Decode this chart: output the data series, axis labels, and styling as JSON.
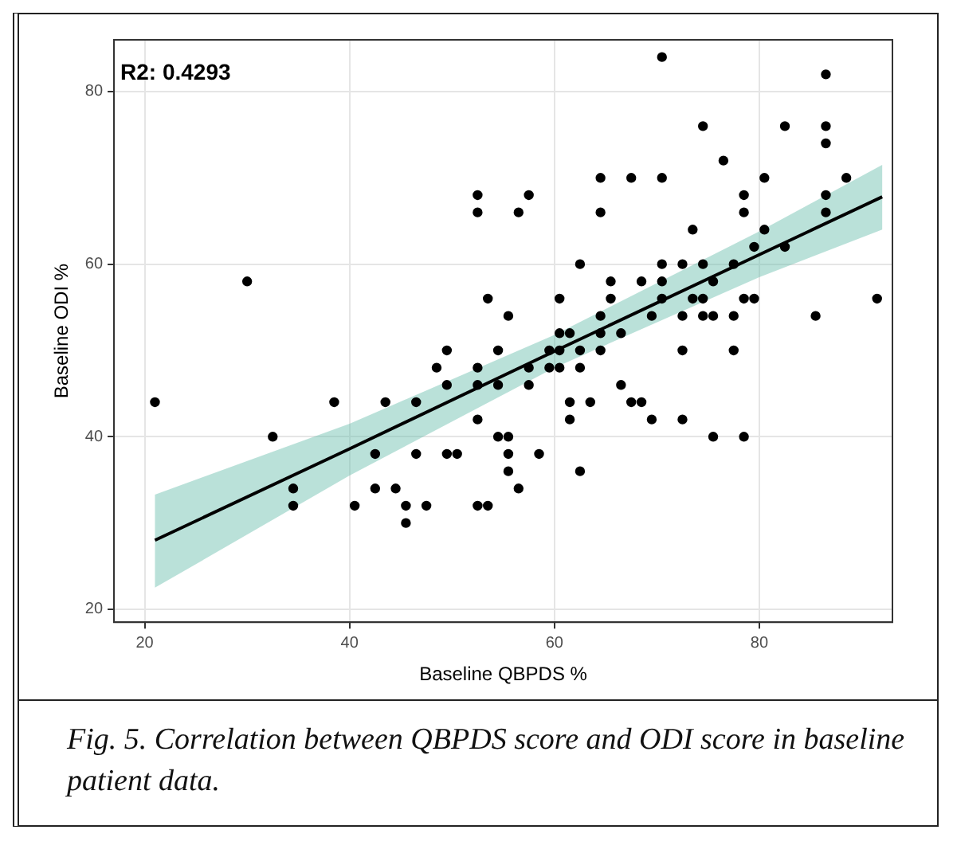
{
  "chart_data": {
    "type": "scatter",
    "xlabel": "Baseline QBPDS %",
    "ylabel": "Baseline ODI %",
    "xlim": [
      17,
      93
    ],
    "ylim": [
      18.5,
      86
    ],
    "xticks": [
      20,
      40,
      60,
      80
    ],
    "yticks": [
      20,
      40,
      60,
      80
    ],
    "grid": true,
    "legend": false,
    "marker": "circle",
    "annotations": [
      "R2: 0.4293",
      "Fig. 5. Correlation between QBPDS score and ODI score in baseline patient data."
    ],
    "series": [
      {
        "type": "scatter",
        "color": "#000000",
        "x": [
          30,
          52.5,
          52.5,
          53.5,
          70.5,
          86.5,
          74.5,
          82.5,
          86.5,
          86.5,
          76.5,
          64.5,
          67.5,
          70.5,
          80.5,
          88.5,
          57.5,
          78.5,
          86.5,
          56.5,
          64.5,
          78.5,
          86.5,
          73.5,
          80.5,
          79.5,
          82.5,
          62.5,
          70.5,
          72.5,
          74.5,
          77.5,
          65.5,
          68.5,
          70.5,
          75.5,
          60.5,
          65.5,
          70.5,
          73.5,
          74.5,
          78.5,
          79.5,
          91.5,
          55.5,
          64.5,
          69.5,
          72.5,
          74.5,
          75.5,
          77.5,
          85.5,
          60.5,
          61.5,
          64.5,
          66.5,
          54.5,
          59.5,
          60.5,
          62.5,
          64.5,
          72.5,
          77.5,
          49.5,
          52.5,
          57.5,
          59.5,
          60.5,
          62.5,
          48.5,
          52.5,
          54.5,
          57.5,
          66.5,
          49.5,
          61.5,
          63.5,
          67.5,
          68.5,
          21,
          38.5,
          43.5,
          46.5,
          52.5,
          61.5,
          69.5,
          72.5,
          54.5,
          55.5,
          75.5,
          78.5,
          32.5,
          55.5,
          58.5,
          42.5,
          46.5,
          49.5,
          50.5,
          55.5,
          62.5,
          56.5,
          34.5,
          42.5,
          44.5,
          52.5,
          53.5,
          34.5,
          40.5,
          45.5,
          47.5,
          45.5
        ],
        "values": [
          58,
          68,
          66,
          56,
          84,
          82,
          76,
          76,
          76,
          74,
          72,
          70,
          70,
          70,
          70,
          70,
          68,
          68,
          68,
          66,
          66,
          66,
          66,
          64,
          64,
          62,
          62,
          60,
          60,
          60,
          60,
          60,
          58,
          58,
          58,
          58,
          56,
          56,
          56,
          56,
          56,
          56,
          56,
          56,
          54,
          54,
          54,
          54,
          54,
          54,
          54,
          54,
          52,
          52,
          52,
          52,
          50,
          50,
          50,
          50,
          50,
          50,
          50,
          50,
          48,
          48,
          48,
          48,
          48,
          48,
          46,
          46,
          46,
          46,
          46,
          44,
          44,
          44,
          44,
          44,
          44,
          44,
          44,
          42,
          42,
          42,
          42,
          40,
          40,
          40,
          40,
          40,
          38,
          38,
          38,
          38,
          38,
          38,
          36,
          36,
          34,
          34,
          34,
          34,
          32,
          32,
          32,
          32,
          32,
          32,
          30
        ]
      },
      {
        "type": "line",
        "color": "#000000",
        "marker": "none",
        "x": [
          21,
          40,
          60,
          80,
          92
        ],
        "values": [
          28,
          38.6,
          49.9,
          61.1,
          67.8
        ],
        "lower": [
          22.5,
          35.5,
          48,
          58.5,
          64
        ],
        "upper": [
          33.3,
          41.5,
          51.8,
          63.8,
          71.5
        ]
      }
    ]
  }
}
